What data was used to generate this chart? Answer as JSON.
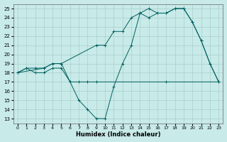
{
  "xlabel": "Humidex (Indice chaleur)",
  "xlim": [
    -0.5,
    23.5
  ],
  "ylim": [
    12.5,
    25.5
  ],
  "yticks": [
    13,
    14,
    15,
    16,
    17,
    18,
    19,
    20,
    21,
    22,
    23,
    24,
    25
  ],
  "xticks": [
    0,
    1,
    2,
    3,
    4,
    5,
    6,
    7,
    8,
    9,
    10,
    11,
    12,
    13,
    14,
    15,
    16,
    17,
    18,
    19,
    20,
    21,
    22,
    23
  ],
  "bg_color": "#c8eae8",
  "grid_color": "#a8d0ce",
  "line_color": "#006060",
  "line1_x": [
    0,
    1,
    2,
    3,
    4,
    5,
    6,
    7,
    8,
    9,
    17,
    23
  ],
  "line1_y": [
    18,
    18.5,
    18,
    18,
    18.5,
    18.5,
    17,
    17,
    17,
    17,
    17,
    17
  ],
  "line2_x": [
    0,
    1,
    2,
    3,
    4,
    5,
    9,
    10,
    11,
    12,
    13,
    14,
    15,
    16,
    17,
    18,
    19,
    20,
    21,
    22,
    23
  ],
  "line2_y": [
    18,
    18.5,
    18.5,
    18.5,
    19,
    19,
    21,
    21,
    22.5,
    22.5,
    24,
    24.5,
    25,
    24.5,
    24.5,
    25,
    25,
    23.5,
    21.5,
    19,
    17
  ],
  "line3_x": [
    0,
    3,
    4,
    5,
    6,
    7,
    8,
    9,
    10,
    11,
    12,
    13,
    14,
    15,
    16,
    17,
    18,
    19,
    20,
    21,
    22,
    23
  ],
  "line3_y": [
    18,
    18.5,
    19,
    19,
    17,
    15,
    14,
    13,
    13,
    16.5,
    19,
    21,
    24.5,
    24,
    24.5,
    24.5,
    25,
    25,
    23.5,
    21.5,
    19,
    17
  ]
}
